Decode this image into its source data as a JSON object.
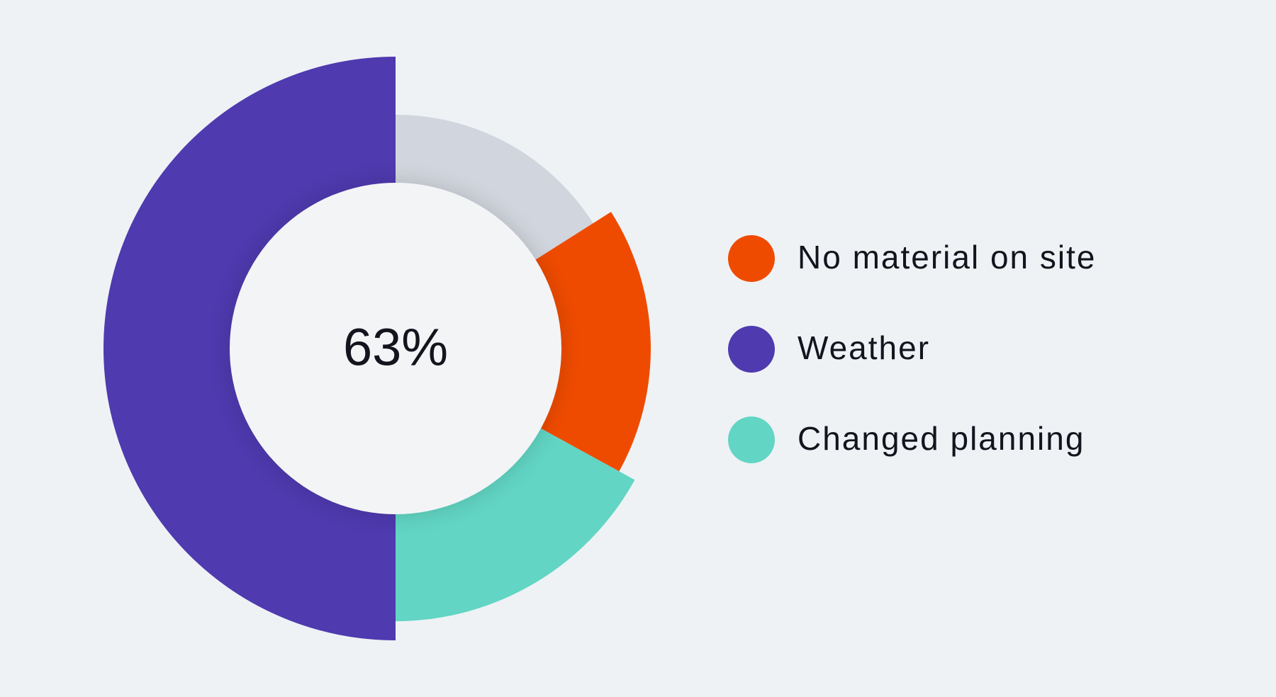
{
  "chart_data": {
    "type": "donut",
    "center_label": "63%",
    "categories": [
      "No material on site",
      "Weather",
      "Changed planning"
    ],
    "values": [
      17,
      50,
      17
    ],
    "colors": [
      "#ef4b00",
      "#4f3aaf",
      "#62d5c4"
    ],
    "track_color": "#d1d5dd"
  }
}
